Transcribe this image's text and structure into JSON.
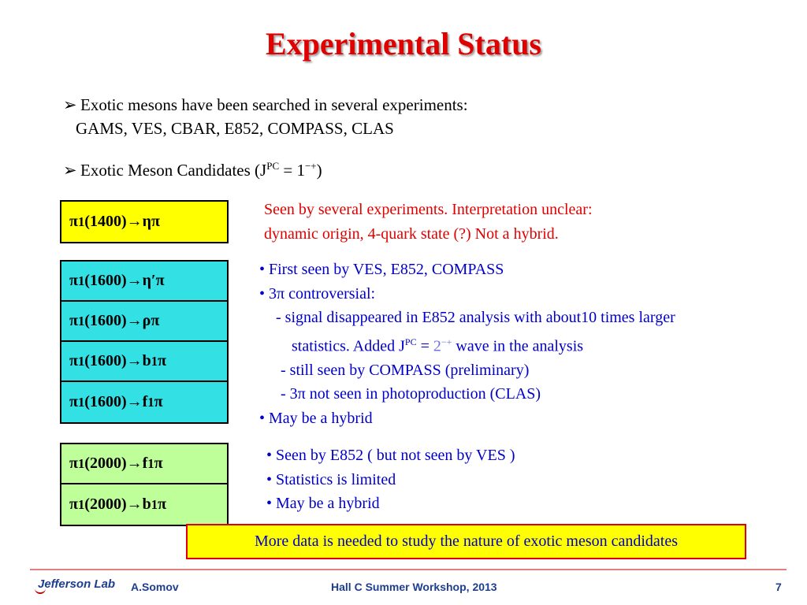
{
  "title": "Experimental Status",
  "bullets": {
    "marker": "➢",
    "b1_line1": "Exotic mesons have been searched in several experiments:",
    "b1_line2": "GAMS, VES, CBAR, E852, COMPASS, CLAS",
    "b2_text": "Exotic Meson Candidates (J",
    "b2_sup1": "PC",
    "b2_eq": " = 1",
    "b2_sup2": "−+",
    "b2_close": ")"
  },
  "candidates": {
    "group1": [
      {
        "pi": "π",
        "sub": "1",
        "mass": "(1400) ",
        "arrow": "→",
        "decay": " ηπ",
        "sub2": "",
        "tail": ""
      }
    ],
    "group2": [
      {
        "pi": "π",
        "sub": "1",
        "mass": "(1600) ",
        "arrow": "→",
        "decay": " η′π",
        "sub2": "",
        "tail": ""
      },
      {
        "pi": "π",
        "sub": "1",
        "mass": "(1600) ",
        "arrow": "→",
        "decay": " ρπ",
        "sub2": "",
        "tail": ""
      },
      {
        "pi": "π",
        "sub": "1",
        "mass": "(1600) ",
        "arrow": "→",
        "decay": " b",
        "sub2": "1",
        "tail": "π"
      },
      {
        "pi": "π",
        "sub": "1",
        "mass": "(1600) ",
        "arrow": "→",
        "decay": " f",
        "sub2": "1",
        "tail": "π"
      }
    ],
    "group3": [
      {
        "pi": "π",
        "sub": "1",
        "mass": "(2000) ",
        "arrow": "→",
        "decay": " f",
        "sub2": "1",
        "tail": "π"
      },
      {
        "pi": "π",
        "sub": "1",
        "mass": "(2000) ",
        "arrow": "→",
        "decay": " b",
        "sub2": "1",
        "tail": "π"
      }
    ]
  },
  "notes": {
    "n1_line1": "Seen by several experiments. Interpretation unclear:",
    "n1_line2": "dynamic origin, 4-quark state (?) Not a hybrid.",
    "n2_l1": "• First seen by VES, E852, COMPASS",
    "n2_l2": "• 3π controversial:",
    "n2_l3": "- signal disappeared in E852 analysis with about10 times larger",
    "n2_l4a": "statistics.  Added  J",
    "n2_l4sup": "PC",
    "n2_l4b": " = ",
    "n2_l4c": "2",
    "n2_l4csup": "−+",
    "n2_l4d": " wave in the analysis",
    "n2_l5": "- still seen by COMPASS (preliminary)",
    "n2_l6": "- 3π not seen in photoproduction (CLAS)",
    "n2_l7": "• May be a hybrid",
    "n3_l1": "• Seen by E852 ( but not seen by VES )",
    "n3_l2": "• Statistics is limited",
    "n3_l3": "• May be a hybrid"
  },
  "conclusion": "More data is needed to study the nature of exotic meson candidates",
  "footer": {
    "logo": "Jefferson Lab",
    "author": "A.Somov",
    "event": "Hall C Summer Workshop, 2013",
    "page": "7"
  },
  "colors": {
    "title": "#e00000",
    "note_red": "#e00000",
    "note_blue": "#0000c8",
    "box_yellow": "#ffff00",
    "box_cyan": "#33e0e4",
    "box_green": "#bfff9a"
  }
}
